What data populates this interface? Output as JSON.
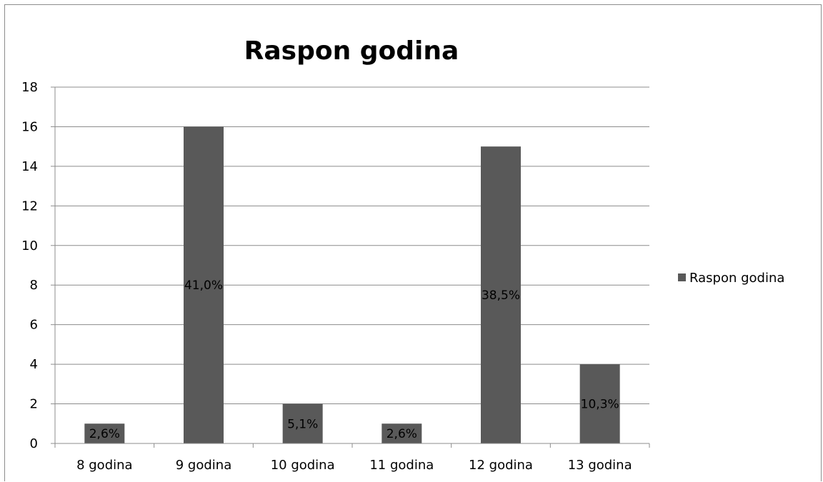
{
  "chart_data": {
    "type": "bar",
    "title": "Raspon godina",
    "categories": [
      "8 godina",
      "9 godina",
      "10 godina",
      "11 godina",
      "12 godina",
      "13 godina"
    ],
    "series": [
      {
        "name": "Raspon godina",
        "values": [
          1,
          16,
          2,
          1,
          15,
          4
        ],
        "data_labels": [
          "2,6%",
          "41,0%",
          "5,1%",
          "2,6%",
          "38,5%",
          "10,3%"
        ],
        "color": "#595959"
      }
    ],
    "ylim": [
      0,
      18
    ],
    "yticks": [
      "0",
      "2",
      "4",
      "6",
      "8",
      "10",
      "12",
      "14",
      "16",
      "18"
    ],
    "grid": true,
    "legend_position": "right"
  }
}
